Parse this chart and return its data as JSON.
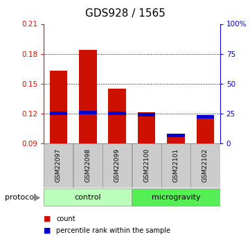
{
  "title": "GDS928 / 1565",
  "samples": [
    "GSM22097",
    "GSM22098",
    "GSM22099",
    "GSM22100",
    "GSM22101",
    "GSM22102"
  ],
  "count_values": [
    0.163,
    0.184,
    0.145,
    0.121,
    0.099,
    0.116
  ],
  "percentile_values": [
    0.12,
    0.121,
    0.12,
    0.119,
    0.098,
    0.117
  ],
  "ylim": [
    0.09,
    0.21
  ],
  "yticks": [
    0.09,
    0.12,
    0.15,
    0.18,
    0.21
  ],
  "right_yticks": [
    0,
    25,
    50,
    75,
    100
  ],
  "right_ytick_labels": [
    "0",
    "25",
    "50",
    "75",
    "100%"
  ],
  "bar_color": "#cc1100",
  "percentile_color": "#0000cc",
  "groups": [
    {
      "label": "control",
      "samples_idx": [
        0,
        1,
        2
      ],
      "color": "#bbffbb"
    },
    {
      "label": "microgravity",
      "samples_idx": [
        3,
        4,
        5
      ],
      "color": "#55ee55"
    }
  ],
  "protocol_label": "protocol",
  "legend_items": [
    {
      "label": "count",
      "color": "#cc1100"
    },
    {
      "label": "percentile rank within the sample",
      "color": "#0000cc"
    }
  ],
  "bar_width": 0.6,
  "left_axis_color": "#cc1100",
  "right_axis_color": "#0000cc",
  "label_area_color": "#cccccc",
  "label_area_edge": "#999999",
  "title_fontsize": 11,
  "tick_fontsize": 7.5,
  "sample_fontsize": 6.5,
  "group_fontsize": 8,
  "legend_fontsize": 7,
  "protocol_fontsize": 8
}
